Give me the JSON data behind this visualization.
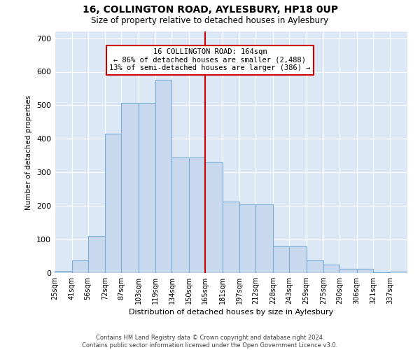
{
  "title": "16, COLLINGTON ROAD, AYLESBURY, HP18 0UP",
  "subtitle": "Size of property relative to detached houses in Aylesbury",
  "xlabel": "Distribution of detached houses by size in Aylesbury",
  "ylabel": "Number of detached properties",
  "bar_color": "#c9d9ed",
  "bar_edge_color": "#7aaed6",
  "background_color": "#dce8f5",
  "annotation_line_color": "#cc0000",
  "annotation_box_color": "#cc0000",
  "annotation_text": "16 COLLINGTON ROAD: 164sqm\n← 86% of detached houses are smaller (2,488)\n13% of semi-detached houses are larger (386) →",
  "bins": [
    25,
    41,
    56,
    72,
    87,
    103,
    119,
    134,
    150,
    165,
    181,
    197,
    212,
    228,
    243,
    259,
    275,
    290,
    306,
    321,
    337,
    353
  ],
  "counts": [
    7,
    38,
    110,
    415,
    507,
    507,
    575,
    345,
    345,
    330,
    213,
    205,
    205,
    80,
    80,
    38,
    25,
    13,
    13,
    2,
    5,
    0
  ],
  "property_line_x": 165,
  "ylim": [
    0,
    720
  ],
  "yticks": [
    0,
    100,
    200,
    300,
    400,
    500,
    600,
    700
  ],
  "tick_labels": [
    "25sqm",
    "41sqm",
    "56sqm",
    "72sqm",
    "87sqm",
    "103sqm",
    "119sqm",
    "134sqm",
    "150sqm",
    "165sqm",
    "181sqm",
    "197sqm",
    "212sqm",
    "228sqm",
    "243sqm",
    "259sqm",
    "275sqm",
    "290sqm",
    "306sqm",
    "321sqm",
    "337sqm"
  ],
  "footer_line1": "Contains HM Land Registry data © Crown copyright and database right 2024.",
  "footer_line2": "Contains public sector information licensed under the Open Government Licence v3.0."
}
